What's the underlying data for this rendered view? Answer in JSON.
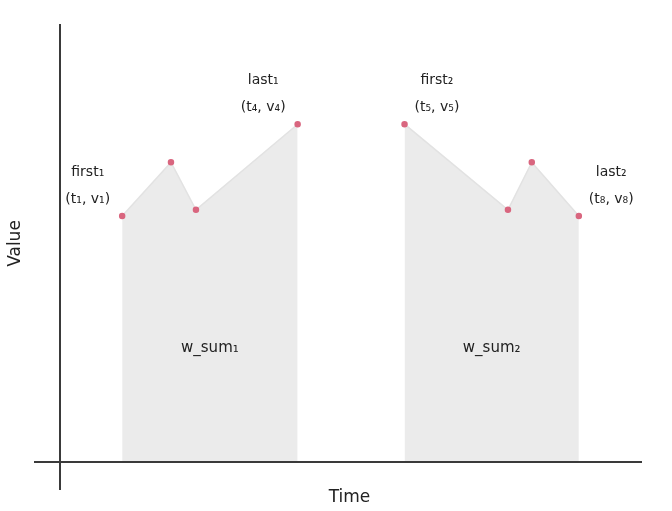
{
  "chart_data": {
    "type": "line",
    "x_label": "Time",
    "y_label": "Value",
    "xlim": [
      0,
      10
    ],
    "ylim": [
      0,
      10
    ],
    "tick_labels": false,
    "grid": false,
    "series": [
      {
        "color": "#ebebeb",
        "marker": "circle",
        "x": [
          1.07,
          1.91,
          2.34,
          4.09
        ],
        "values": [
          5.63,
          6.86,
          5.77,
          7.73
        ],
        "point_labels": [
          [
            "first₁",
            "(t₁, v₁)"
          ],
          null,
          null,
          [
            "last₁",
            "(t₄, v₄)"
          ]
        ],
        "area_label": "w_sum₁"
      },
      {
        "color": "#ebebeb",
        "marker": "circle",
        "x": [
          5.93,
          7.71,
          8.12,
          8.93
        ],
        "values": [
          7.73,
          5.77,
          6.86,
          5.63
        ],
        "point_labels": [
          [
            "first₂",
            "(t₅, v₅)"
          ],
          null,
          null,
          [
            "last₂",
            "(t₈, v₈)"
          ]
        ],
        "area_label": "w_sum₂"
      }
    ]
  }
}
